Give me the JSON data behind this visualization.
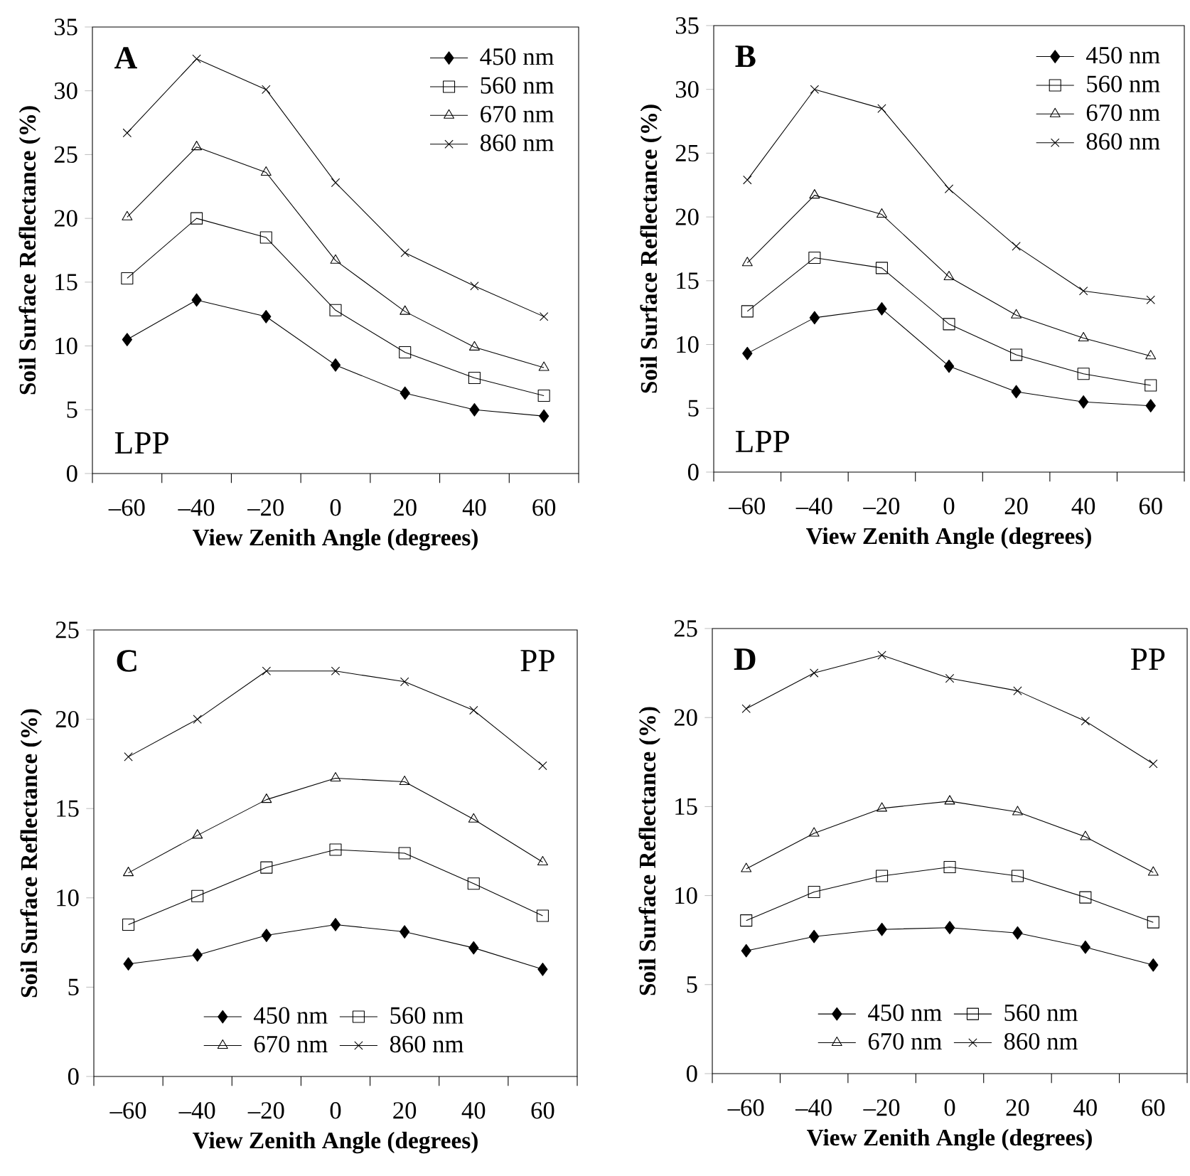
{
  "chart_data": [
    {
      "type": "line",
      "categories": [
        "–60",
        "–40",
        "–20",
        "0",
        "20",
        "40",
        "60"
      ],
      "xlabel": "View Zenith Angle (degrees)",
      "ylabel": "Soil Surface Reflectance (%)",
      "ylim": [
        0,
        35
      ],
      "yticks": [
        0,
        5,
        10,
        15,
        20,
        25,
        30,
        35
      ],
      "legend": "top right",
      "grid": false,
      "annotations": [
        "**A**",
        "LPP"
      ],
      "series": [
        {
          "name": "450 nm",
          "color": "#000000",
          "marker": "diamond",
          "values": [
            10.5,
            13.6,
            12.3,
            8.5,
            6.3,
            5.0,
            4.5
          ]
        },
        {
          "name": "560 nm",
          "color": "#000000",
          "marker": "square",
          "values": [
            15.3,
            20.0,
            18.5,
            12.8,
            9.5,
            7.5,
            6.1
          ]
        },
        {
          "name": "670 nm",
          "color": "#000000",
          "marker": "triangle",
          "values": [
            20.1,
            25.6,
            23.6,
            16.7,
            12.7,
            9.9,
            8.3
          ]
        },
        {
          "name": "860 nm",
          "color": "#000000",
          "marker": "cross",
          "values": [
            26.7,
            32.5,
            30.1,
            22.8,
            17.3,
            14.7,
            12.3
          ]
        }
      ]
    },
    {
      "type": "line",
      "categories": [
        "–60",
        "–40",
        "–20",
        "0",
        "20",
        "40",
        "60"
      ],
      "xlabel": "View Zenith Angle (degrees)",
      "ylabel": "Soil Surface Reflectance (%)",
      "ylim": [
        0,
        35
      ],
      "yticks": [
        0,
        5,
        10,
        15,
        20,
        25,
        30,
        35
      ],
      "legend": "top right",
      "grid": false,
      "annotations": [
        "**B**",
        "LPP"
      ],
      "series": [
        {
          "name": "450 nm",
          "color": "#000000",
          "marker": "diamond",
          "values": [
            9.3,
            12.1,
            12.8,
            8.3,
            6.3,
            5.5,
            5.2
          ]
        },
        {
          "name": "560 nm",
          "color": "#000000",
          "marker": "square",
          "values": [
            12.6,
            16.8,
            16.0,
            11.6,
            9.2,
            7.7,
            6.8
          ]
        },
        {
          "name": "670 nm",
          "color": "#000000",
          "marker": "triangle",
          "values": [
            16.4,
            21.7,
            20.2,
            15.3,
            12.3,
            10.5,
            9.1
          ]
        },
        {
          "name": "860 nm",
          "color": "#000000",
          "marker": "cross",
          "values": [
            22.9,
            30.0,
            28.5,
            22.2,
            17.7,
            14.2,
            13.5
          ]
        }
      ]
    },
    {
      "type": "line",
      "categories": [
        "–60",
        "–40",
        "–20",
        "0",
        "20",
        "40",
        "60"
      ],
      "xlabel": "View Zenith Angle (degrees)",
      "ylabel": "Soil Surface Reflectance (%)",
      "ylim": [
        0,
        25
      ],
      "yticks": [
        0,
        5,
        10,
        15,
        20,
        25
      ],
      "legend": "bottom",
      "grid": false,
      "annotations": [
        "**C**",
        "PP"
      ],
      "series": [
        {
          "name": "450 nm",
          "color": "#000000",
          "marker": "diamond",
          "values": [
            6.3,
            6.8,
            7.9,
            8.5,
            8.1,
            7.2,
            6.0
          ]
        },
        {
          "name": "560 nm",
          "color": "#000000",
          "marker": "square",
          "values": [
            8.5,
            10.1,
            11.7,
            12.7,
            12.5,
            10.8,
            9.0
          ]
        },
        {
          "name": "670 nm",
          "color": "#000000",
          "marker": "triangle",
          "values": [
            11.4,
            13.5,
            15.5,
            16.7,
            16.5,
            14.4,
            12.0
          ]
        },
        {
          "name": "860 nm",
          "color": "#000000",
          "marker": "cross",
          "values": [
            17.9,
            20.0,
            22.7,
            22.7,
            22.1,
            20.5,
            17.4
          ]
        }
      ]
    },
    {
      "type": "line",
      "categories": [
        "–60",
        "–40",
        "–20",
        "0",
        "20",
        "40",
        "60"
      ],
      "xlabel": "View Zenith Angle (degrees)",
      "ylabel": "Soil Surface Reflectance (%)",
      "ylim": [
        0,
        25
      ],
      "yticks": [
        0,
        5,
        10,
        15,
        20,
        25
      ],
      "legend": "bottom",
      "grid": false,
      "annotations": [
        "**D**",
        "PP"
      ],
      "series": [
        {
          "name": "450 nm",
          "color": "#000000",
          "marker": "diamond",
          "values": [
            6.9,
            7.7,
            8.1,
            8.2,
            7.9,
            7.1,
            6.1
          ]
        },
        {
          "name": "560 nm",
          "color": "#000000",
          "marker": "square",
          "values": [
            8.6,
            10.2,
            11.1,
            11.6,
            11.1,
            9.9,
            8.5
          ]
        },
        {
          "name": "670 nm",
          "color": "#000000",
          "marker": "triangle",
          "values": [
            11.5,
            13.5,
            14.9,
            15.3,
            14.7,
            13.3,
            11.3
          ]
        },
        {
          "name": "860 nm",
          "color": "#000000",
          "marker": "cross",
          "values": [
            20.5,
            22.5,
            23.5,
            22.2,
            21.5,
            19.8,
            17.4
          ]
        }
      ]
    }
  ]
}
